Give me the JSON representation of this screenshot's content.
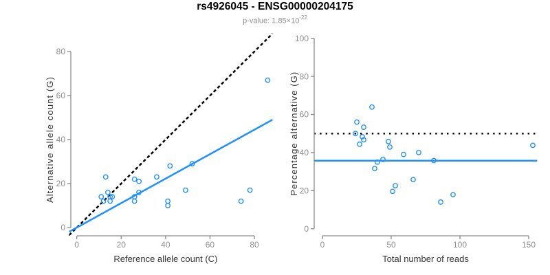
{
  "figure": {
    "title": "rs4926045 - ENSG00000204175",
    "subtitle_prefix": "p-value: 1.85×10",
    "subtitle_exponent": "-22"
  },
  "style": {
    "point_color": "#1E90FF",
    "fit_line_color": "#1E90FF",
    "reference_line_color": "#000000",
    "axis_color": "#898989",
    "tick_label_color": "#8f8f8f",
    "axis_title_color": "#333333"
  },
  "chart_data": [
    {
      "type": "scatter",
      "xlabel": "Reference allele count (C)",
      "ylabel": "Alternative allele count (G)",
      "xlim": [
        0,
        86
      ],
      "ylim": [
        0,
        86
      ],
      "xticks": [
        0,
        20,
        40,
        60,
        80
      ],
      "yticks": [
        0,
        20,
        40,
        60,
        80
      ],
      "grid": false,
      "legend": "none",
      "points": [
        [
          11,
          14
        ],
        [
          12,
          12
        ],
        [
          13,
          23
        ],
        [
          14,
          16
        ],
        [
          15,
          12
        ],
        [
          15,
          14
        ],
        [
          16,
          14
        ],
        [
          26,
          12
        ],
        [
          26,
          14
        ],
        [
          26,
          22
        ],
        [
          28,
          16
        ],
        [
          28,
          21
        ],
        [
          36,
          23
        ],
        [
          41,
          10
        ],
        [
          41,
          12
        ],
        [
          42,
          28
        ],
        [
          49,
          17
        ],
        [
          52,
          29
        ],
        [
          74,
          12
        ],
        [
          78,
          17
        ],
        [
          86,
          67
        ]
      ],
      "lines": [
        {
          "name": "identity-line",
          "style": "dashed",
          "color": "#000000",
          "slope": 1,
          "intercept": 0
        },
        {
          "name": "fitted-proportion-line",
          "style": "solid",
          "color": "#1E90FF",
          "slope": 0.556,
          "intercept": 0
        }
      ]
    },
    {
      "type": "scatter",
      "xlabel": "Total number of reads",
      "ylabel": "Percentage alternative (G)",
      "xlim": [
        0,
        153
      ],
      "ylim": [
        0,
        100
      ],
      "xticks": [
        0,
        50,
        100,
        150
      ],
      "yticks": [
        0,
        20,
        40,
        60,
        80,
        100
      ],
      "grid": false,
      "legend": "none",
      "points": [
        [
          24,
          50
        ],
        [
          25,
          56
        ],
        [
          27,
          44.4
        ],
        [
          29,
          48.3
        ],
        [
          30,
          46.7
        ],
        [
          30,
          53.3
        ],
        [
          36,
          63.9
        ],
        [
          38,
          31.6
        ],
        [
          40,
          35
        ],
        [
          44,
          36.4
        ],
        [
          48,
          45.8
        ],
        [
          49,
          42.9
        ],
        [
          51,
          19.6
        ],
        [
          53,
          22.6
        ],
        [
          59,
          39
        ],
        [
          66,
          25.8
        ],
        [
          70,
          40
        ],
        [
          81,
          35.8
        ],
        [
          86,
          14
        ],
        [
          95,
          17.9
        ],
        [
          153,
          43.8
        ]
      ],
      "lines": [
        {
          "name": "fifty-percent-line",
          "style": "dotted",
          "color": "#000000",
          "y": 50
        },
        {
          "name": "mean-percentage-line",
          "style": "solid",
          "color": "#1E90FF",
          "y": 35.7
        }
      ]
    }
  ]
}
